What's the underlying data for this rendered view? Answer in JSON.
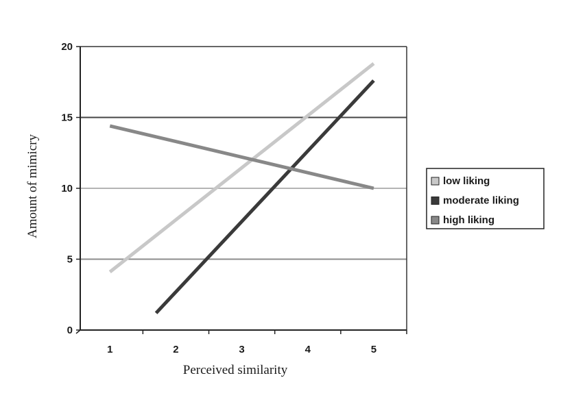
{
  "chart_data": {
    "type": "line",
    "xlabel": "Perceived similarity",
    "ylabel": "Amount of mimicry",
    "x_ticks": [
      "1",
      "2",
      "3",
      "4",
      "5"
    ],
    "y_ticks": [
      "0",
      "5",
      "10",
      "15",
      "20"
    ],
    "xlim": [
      0.55,
      5.5
    ],
    "ylim": [
      0,
      20
    ],
    "grid": "horizontal",
    "legend_position": "right",
    "series": [
      {
        "name": "low liking",
        "color": "#c8c8c8",
        "points": [
          [
            1,
            4.1
          ],
          [
            5,
            18.8
          ]
        ]
      },
      {
        "name": "moderate liking",
        "color": "#3a3a3a",
        "points": [
          [
            1.7,
            1.2
          ],
          [
            5,
            17.6
          ]
        ]
      },
      {
        "name": "high liking",
        "color": "#888888",
        "points": [
          [
            1,
            14.4
          ],
          [
            5,
            10.0
          ]
        ]
      }
    ]
  }
}
